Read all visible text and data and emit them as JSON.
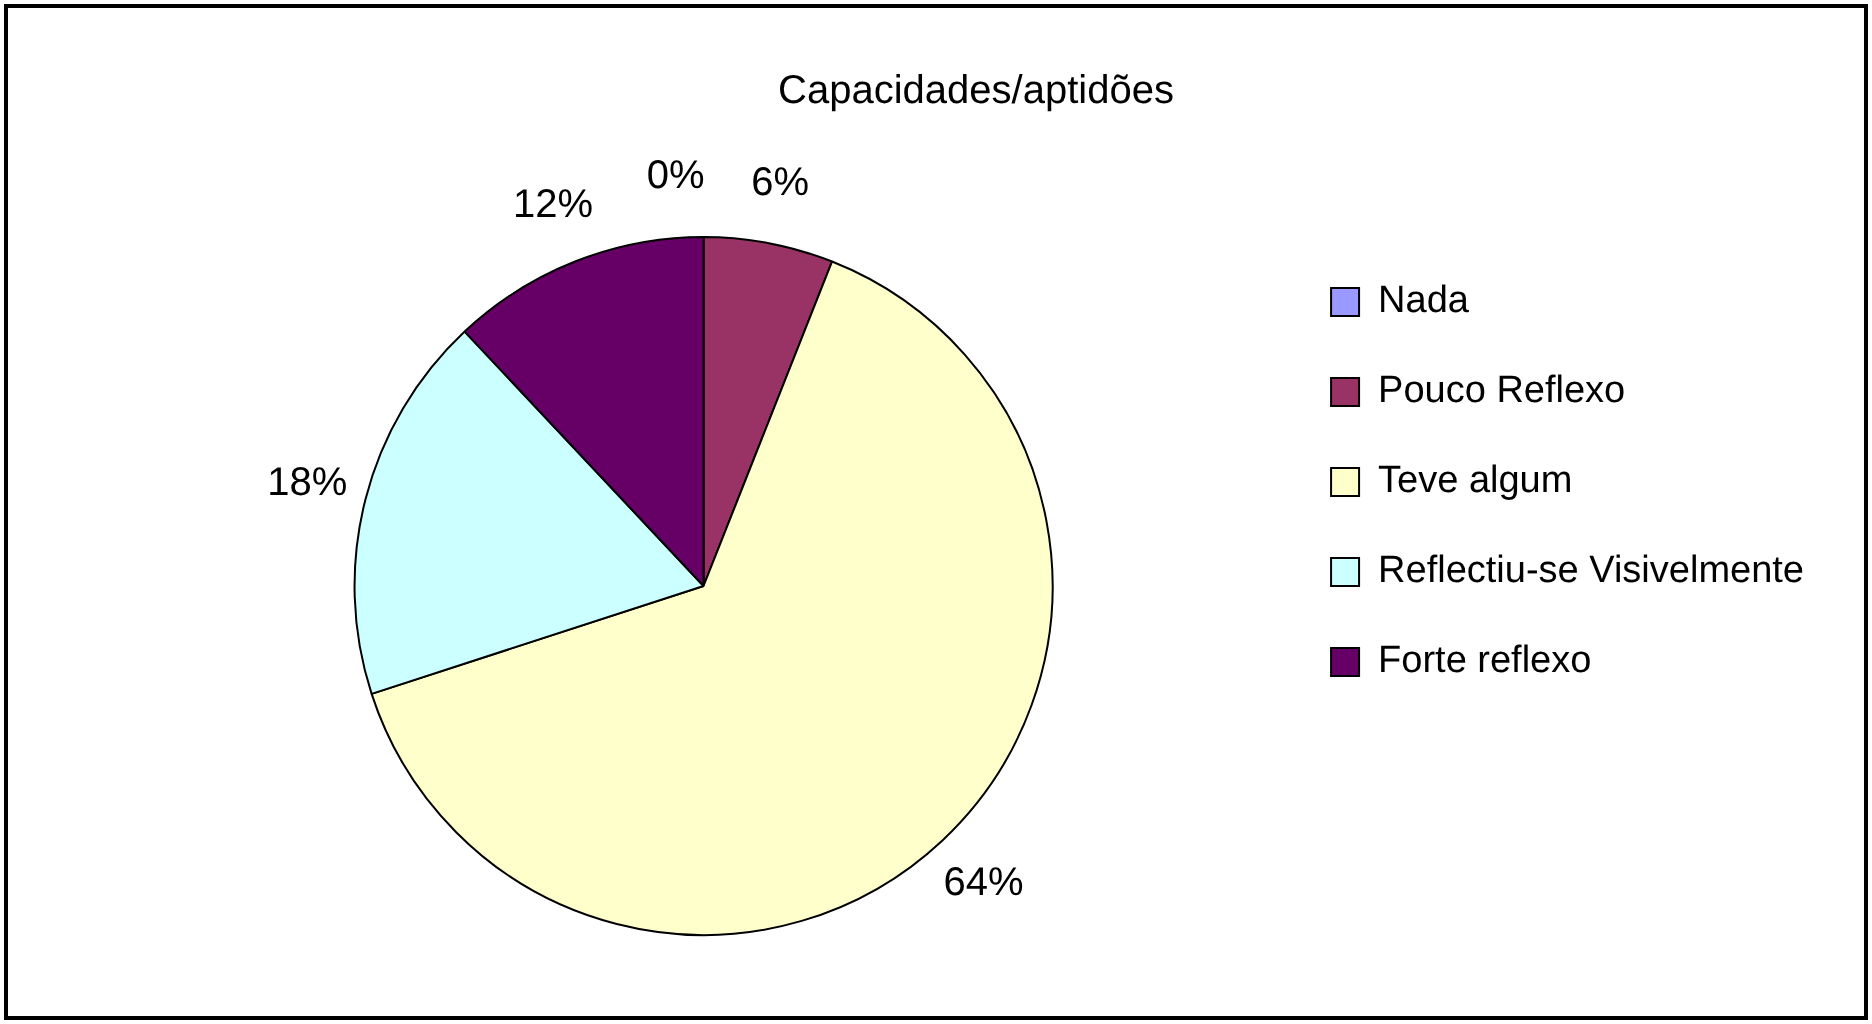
{
  "chart_data": {
    "type": "pie",
    "title": "Capacidades/aptidões",
    "categories": [
      "Nada",
      "Pouco Reflexo",
      "Teve algum",
      "Reflectiu-se Visivelmente",
      "Forte reflexo"
    ],
    "values": [
      0,
      6,
      64,
      18,
      12
    ],
    "colors": [
      "#9999ff",
      "#993366",
      "#ffffcc",
      "#ccffff",
      "#660066"
    ],
    "value_labels": [
      "0%",
      "6%",
      "64%",
      "18%",
      "12%"
    ],
    "legend": "right"
  }
}
